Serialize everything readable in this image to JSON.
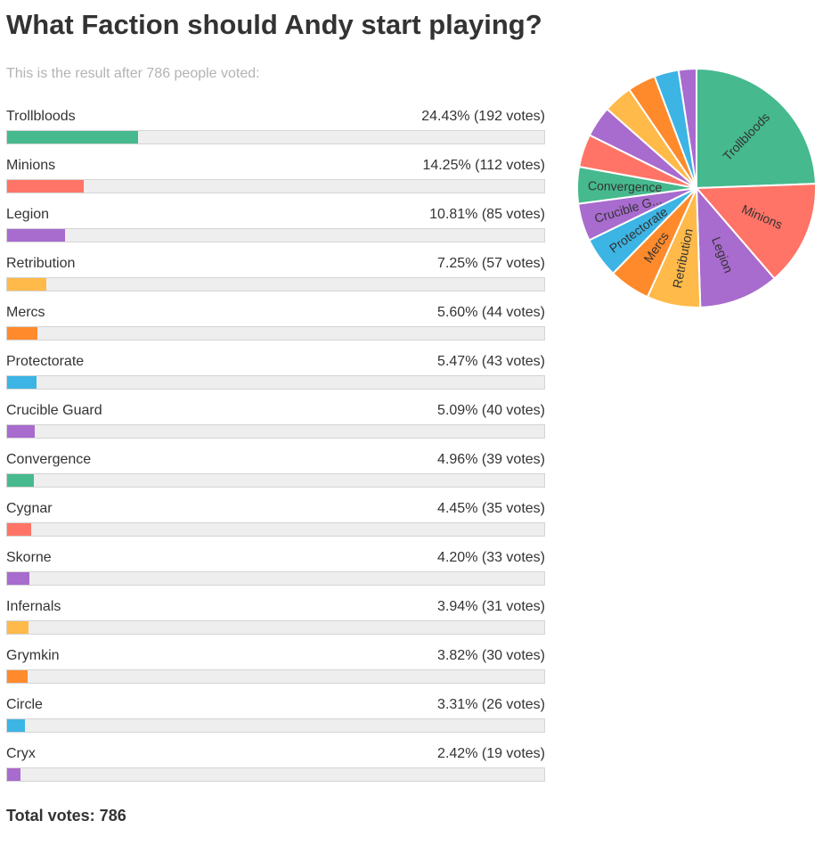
{
  "title": "What Faction should Andy start playing?",
  "subtitle": "This is the result after 786 people voted:",
  "total_label": "Total votes: 786",
  "chart_data": {
    "type": "bar",
    "total_votes": 786,
    "categories": [
      "Trollbloods",
      "Minions",
      "Legion",
      "Retribution",
      "Mercs",
      "Protectorate",
      "Crucible Guard",
      "Convergence",
      "Cygnar",
      "Skorne",
      "Infernals",
      "Grymkin",
      "Circle",
      "Cryx"
    ],
    "values": [
      192,
      112,
      85,
      57,
      44,
      43,
      40,
      39,
      35,
      33,
      31,
      30,
      26,
      19
    ],
    "percents": [
      24.43,
      14.25,
      10.81,
      7.25,
      5.6,
      5.47,
      5.09,
      4.96,
      4.45,
      4.2,
      3.94,
      3.82,
      3.31,
      2.42
    ],
    "labels": [
      "24.43% (192 votes)",
      "14.25% (112 votes)",
      "10.81% (85 votes)",
      "7.25% (57 votes)",
      "5.60% (44 votes)",
      "5.47% (43 votes)",
      "5.09% (40 votes)",
      "4.96% (39 votes)",
      "4.45% (35 votes)",
      "4.20% (33 votes)",
      "3.94% (31 votes)",
      "3.82% (30 votes)",
      "3.31% (26 votes)",
      "2.42% (19 votes)"
    ],
    "colors": [
      "#46b98e",
      "#ff7466",
      "#a86bce",
      "#ffba4a",
      "#ff8a2b",
      "#3cb4e4",
      "#a86bce",
      "#46b98e",
      "#ff7466",
      "#a86bce",
      "#ffba4a",
      "#ff8a2b",
      "#3cb4e4",
      "#a86bce"
    ],
    "pie": {
      "type": "pie",
      "slice_labels": [
        "Trollbloods",
        "Minions",
        "Legion",
        "Retribution",
        "Mercs",
        "Protectorate",
        "Crucible G...",
        "Convergence",
        "",
        "",
        "",
        "",
        "",
        ""
      ]
    }
  }
}
